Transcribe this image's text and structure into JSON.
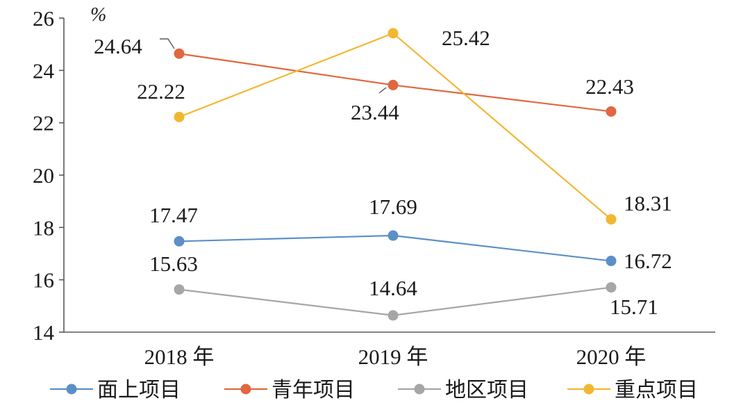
{
  "chart_data": {
    "type": "line",
    "title": "",
    "xlabel": "",
    "ylabel": "%",
    "categories": [
      "2018 年",
      "2019 年",
      "2020 年"
    ],
    "ylim": [
      14,
      26
    ],
    "yticks": [
      14,
      16,
      18,
      20,
      22,
      24,
      26
    ],
    "grid": false,
    "legend_position": "bottom",
    "series": [
      {
        "name": "面上项目",
        "color": "#5b8fc7",
        "values": [
          17.47,
          17.69,
          16.72
        ],
        "labels": [
          "17.47",
          "17.69",
          "16.72"
        ]
      },
      {
        "name": "青年项目",
        "color": "#e0673f",
        "values": [
          24.64,
          23.44,
          22.43
        ],
        "labels": [
          "24.64",
          "23.44",
          "22.43"
        ]
      },
      {
        "name": "地区项目",
        "color": "#a6a6a6",
        "values": [
          15.63,
          14.64,
          15.71
        ],
        "labels": [
          "15.63",
          "14.64",
          "15.71"
        ]
      },
      {
        "name": "重点项目",
        "color": "#f2b731",
        "values": [
          22.22,
          25.42,
          18.31
        ],
        "labels": [
          "22.22",
          "25.42",
          "18.31"
        ]
      }
    ]
  }
}
